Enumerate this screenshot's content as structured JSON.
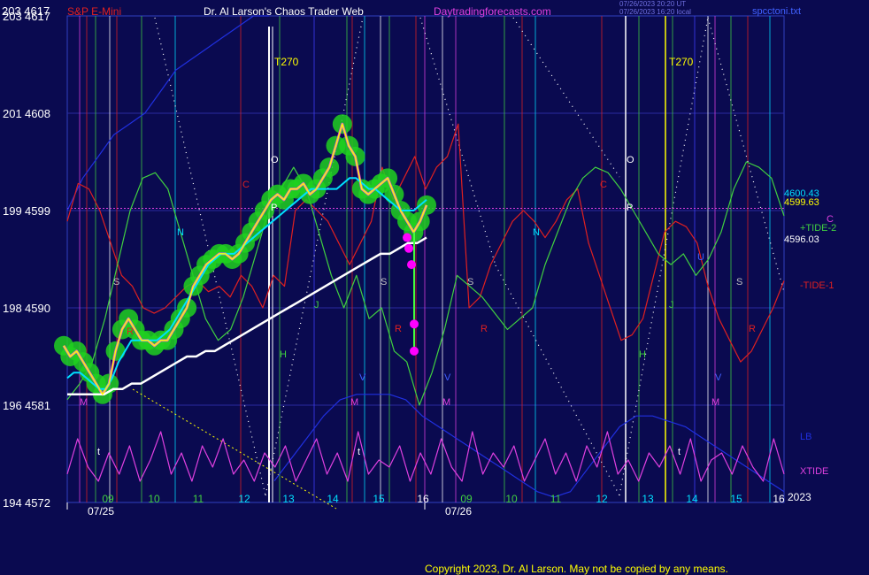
{
  "header": {
    "left_corner": "203  4617",
    "symbol": "S&P E-Mini",
    "site_title": "Dr. Al Larson's Chaos Trader Web",
    "site_url": "Daytradingforecasts.com",
    "stamp_line1": "07/26/2023 20:20 UT",
    "stamp_line2": "07/26/2023 16:20 local",
    "file_name": "spcctoni.txt"
  },
  "colors": {
    "background": "#0a0a50",
    "price": "#ffff00",
    "fast_ma": "#00e0ff",
    "slow_ma": "#ffffff",
    "tide1": "#e02020",
    "tide2": "#40d040",
    "xtide": "#e040e0",
    "lb": "#2030e0",
    "glow": "#20d020",
    "forecast_dot": "#ff00ff"
  },
  "chart_data": {
    "type": "line",
    "title": "S&P E-Mini",
    "y_axis_left": {
      "ticks": [
        {
          "tide": "194",
          "price": 4572
        },
        {
          "tide": "196",
          "price": 4581
        },
        {
          "tide": "198",
          "price": 4590
        },
        {
          "tide": "199",
          "price": 4599
        },
        {
          "tide": "201",
          "price": 4608
        },
        {
          "tide": "203",
          "price": 4617
        }
      ],
      "range": [
        4572,
        4617
      ]
    },
    "x_axis": {
      "hour_ticks": [
        "09",
        "10",
        "11",
        "12",
        "13",
        "14",
        "15",
        "16",
        "09",
        "10",
        "11",
        "12",
        "13",
        "14",
        "15",
        "16"
      ],
      "date_labels": [
        "07/25",
        "07/26"
      ],
      "year_label": "2023"
    },
    "right_labels": {
      "fast_value": "4600.43",
      "price_value": "4599.63",
      "tide2": "+TIDE-2",
      "c_marker": "C",
      "slow_value": "4596.03",
      "tide1": "-TIDE-1",
      "lb": "LB",
      "xtide": "XTIDE"
    },
    "vertical_markers": [
      "T270",
      "T270"
    ],
    "chart_letters": [
      "M",
      "S",
      "N",
      "R",
      "C",
      "O",
      "P",
      "H",
      "J",
      "S",
      "R",
      "M",
      "V",
      "t",
      "t",
      "M",
      "V",
      "S",
      "R",
      "N",
      "C",
      "O",
      "P",
      "H",
      "J",
      "R",
      "M",
      "V",
      "t",
      "S",
      "U"
    ],
    "series": [
      {
        "name": "Price",
        "values": [
          4586.5,
          4585.5,
          4586,
          4585,
          4584,
          4583,
          4582,
          4583,
          4586,
          4588,
          4589,
          4588,
          4587,
          4587,
          4586.5,
          4587,
          4587,
          4588,
          4589,
          4590,
          4592,
          4593,
          4594,
          4594.5,
          4595,
          4595,
          4594.5,
          4595,
          4596,
          4597,
          4598,
          4599,
          4600,
          4600.5,
          4600,
          4601,
          4601,
          4601.5,
          4600.5,
          4601,
          4602,
          4603,
          4605,
          4607,
          4605,
          4604,
          4601,
          4600.5,
          4601,
          4601.5,
          4602,
          4600.5,
          4599,
          4598,
          4597,
          4598,
          4599.5
        ]
      },
      {
        "name": "MA-fast",
        "values": [
          4583.5,
          4584,
          4584,
          4583.5,
          4583,
          4582.5,
          4582.5,
          4583.5,
          4585,
          4586,
          4587,
          4587,
          4587,
          4587,
          4587,
          4587.5,
          4588,
          4589,
          4590,
          4591,
          4592,
          4593,
          4594,
          4594.5,
          4595,
          4595,
          4595,
          4595.5,
          4596,
          4596.5,
          4597,
          4597.5,
          4598,
          4598.5,
          4599,
          4599.5,
          4600,
          4600.5,
          4601,
          4601,
          4601,
          4601,
          4601,
          4601.5,
          4602,
          4602,
          4601.5,
          4601,
          4601,
          4600.5,
          4600,
          4599.5,
          4599,
          4599,
          4599,
          4599.5,
          4600
        ]
      },
      {
        "name": "MA-slow",
        "values": [
          4582,
          4582,
          4582,
          4582,
          4582,
          4582.5,
          4582.5,
          4583,
          4583,
          4583.5,
          4584,
          4584.5,
          4585,
          4585.5,
          4585.5,
          4586,
          4586,
          4586.5,
          4587,
          4587.5,
          4588,
          4588.5,
          4589,
          4589.5,
          4590,
          4590.5,
          4591,
          4591.5,
          4592,
          4592.5,
          4593,
          4593.5,
          4594,
          4594.5,
          4595,
          4595,
          4595.5,
          4596,
          4596,
          4596.5
        ]
      },
      {
        "name": "Forecast",
        "values": [
          4593,
          4591.5,
          4589,
          4587,
          4585.5,
          4584.5,
          4583.5,
          4583,
          4582.5,
          4583,
          4584.5,
          4587,
          4591,
          4595,
          4597,
          4596,
          4594,
          4596,
          4598,
          4598.5,
          4597.5,
          4595,
          4593,
          4591.5,
          4590,
          4588,
          4587,
          4585,
          4584,
          4584,
          4585,
          4587,
          4590,
          4595,
          4598,
          4601.5,
          4600.5,
          4599
        ]
      },
      {
        "name": "TIDE-1",
        "values": [
          4598,
          4601.5,
          4601,
          4599,
          4596,
          4593,
          4592,
          4590,
          4589.5,
          4590,
          4591,
          4592,
          4592.5,
          4591.5,
          4592,
          4591,
          4593,
          4592,
          4590,
          4593,
          4592,
          4599,
          4600,
          4599,
          4598,
          4596,
          4594,
          4596,
          4598,
          4603,
          4600,
          4602,
          4604,
          4601,
          4603,
          4604,
          4607,
          4590,
          4591,
          4594,
          4596,
          4598,
          4599,
          4598,
          4596.5,
          4598,
          4600,
          4601,
          4596,
          4593,
          4590,
          4587,
          4587.5,
          4589,
          4593,
          4597,
          4598,
          4597.5,
          4596,
          4592,
          4589,
          4587,
          4585,
          4586,
          4588,
          4590,
          4592.5
        ]
      },
      {
        "name": "TIDE-2",
        "values": [
          4581.5,
          4583,
          4585,
          4589,
          4594,
          4599,
          4602,
          4602.5,
          4601,
          4597,
          4593,
          4589,
          4587,
          4588,
          4591,
          4595,
          4599,
          4601,
          4603,
          4601,
          4597,
          4593,
          4590,
          4593,
          4589,
          4590,
          4586,
          4585,
          4581,
          4584,
          4588,
          4593,
          4592,
          4591,
          4589.5,
          4588,
          4589,
          4590,
          4594,
          4597,
          4600,
          4602,
          4603,
          4602.5,
          4601,
          4599,
          4597,
          4595,
          4594,
          4595,
          4593,
          4594.5,
          4597,
          4601,
          4603.5,
          4603,
          4602,
          4598.5
        ]
      },
      {
        "name": "XTIDE",
        "values": [
          0.3,
          0.8,
          0.4,
          0.2,
          0.6,
          0.3,
          0.7,
          0.2,
          0.5,
          0.9,
          0.3,
          0.6,
          0.2,
          0.7,
          0.4,
          0.8,
          0.3,
          0.5,
          0.2,
          0.6,
          0.4,
          0.7,
          0.2,
          0.5,
          0.8,
          0.3,
          0.6,
          0.2,
          0.9,
          0.3,
          0.5,
          0.4,
          0.7,
          0.2,
          0.6,
          0.3,
          0.8,
          0.4,
          0.2,
          0.9,
          0.3,
          0.6,
          0.4,
          0.7,
          0.2,
          0.5,
          0.8,
          0.3,
          0.6,
          0.2,
          0.7,
          0.4,
          0.9,
          0.3,
          0.5,
          0.2,
          0.6,
          0.4,
          0.7,
          0.3,
          0.8,
          0.2,
          0.5,
          0.6,
          0.3,
          0.7,
          0.4,
          0.2,
          0.8,
          0.3
        ]
      },
      {
        "name": "LB",
        "values": [
          4599,
          4602,
          4604,
          4606,
          4607,
          4608,
          4610,
          4612,
          4613,
          4614,
          4615,
          4616,
          4617,
          4617,
          4574,
          4576,
          4578,
          4580,
          4581.5,
          4582,
          4582,
          4582,
          4581.5,
          4580,
          4579,
          4578,
          4577,
          4576,
          4575,
          4574,
          4573,
          4572.5,
          4573,
          4575,
          4577,
          4579,
          4580,
          4580,
          4579.5,
          4579,
          4578,
          4577,
          4576,
          4575,
          4574,
          4573
        ]
      }
    ],
    "forecast_dots": [
      4596.5,
      4595.5,
      4594,
      4588.5,
      4586
    ],
    "footer": "Copyright 2023, Dr. Al Larson. May not be copied by any means."
  }
}
